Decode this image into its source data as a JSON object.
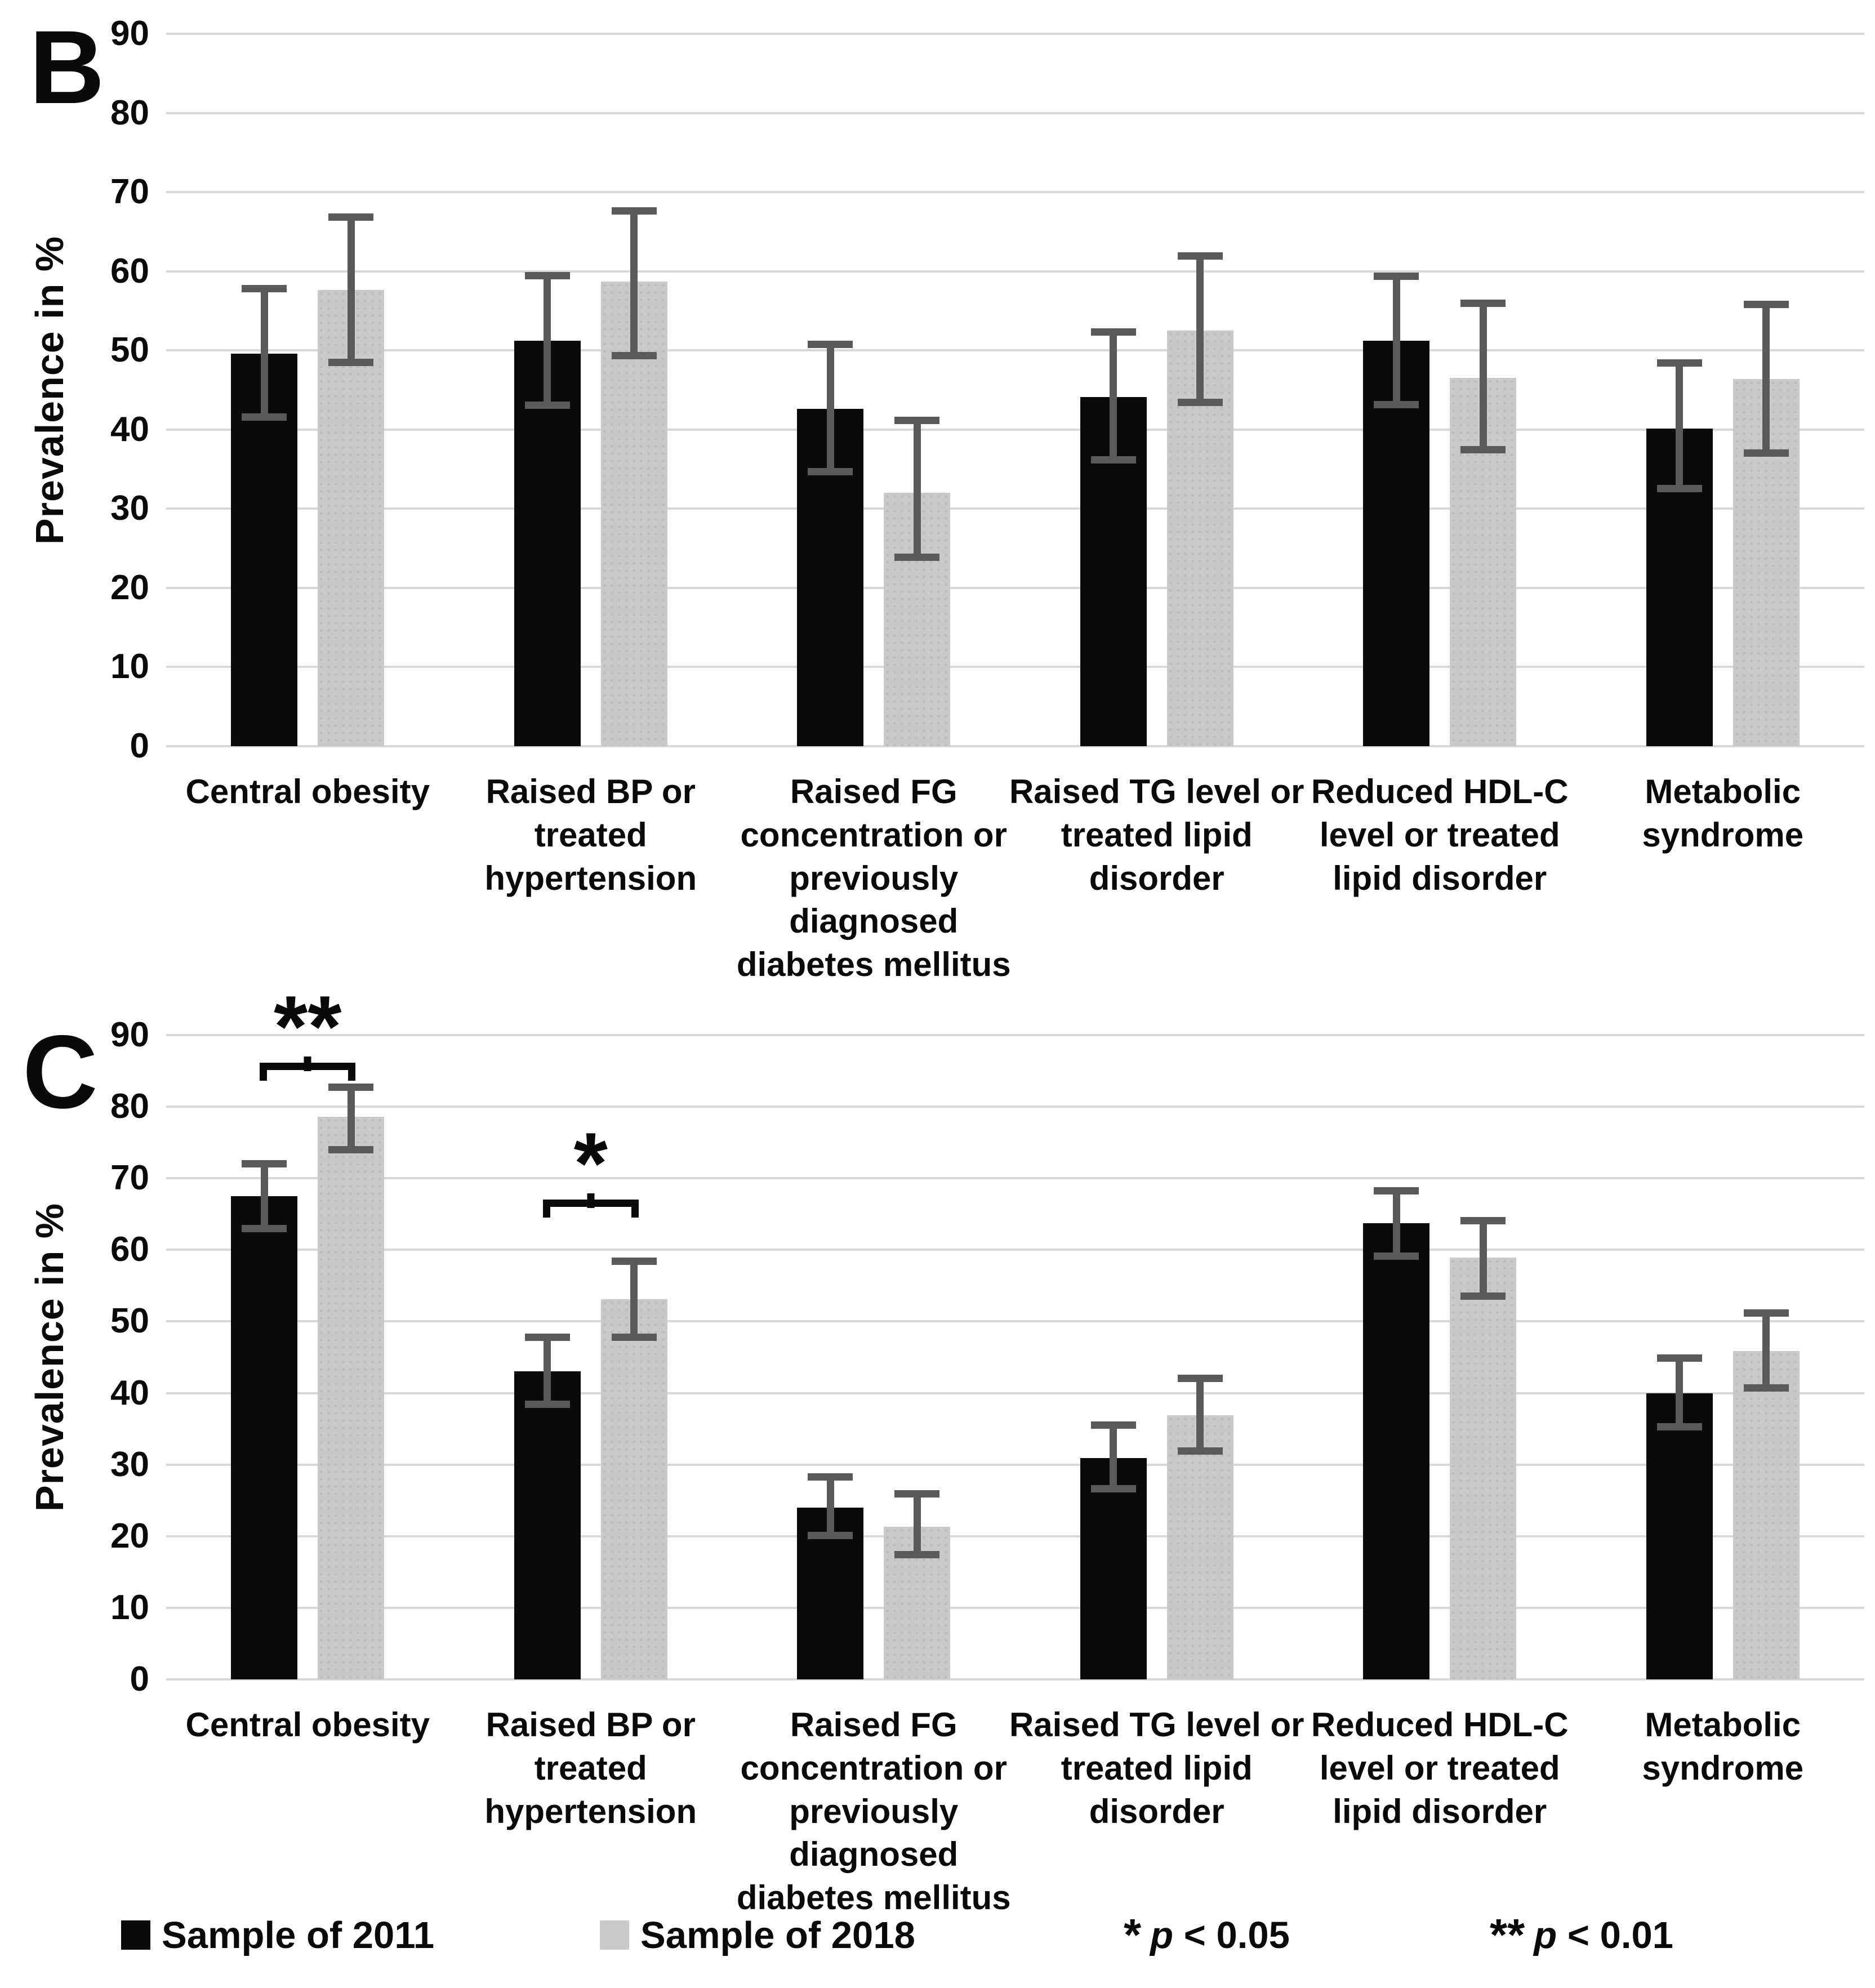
{
  "panels": [
    {
      "letter": "B",
      "y_axis_title": "Prevalence in %"
    },
    {
      "letter": "C",
      "y_axis_title": "Prevalence in %"
    }
  ],
  "legend": {
    "series": [
      {
        "label": "Sample of 2011",
        "color": "#0a0a0a"
      },
      {
        "label": "Sample of 2018",
        "color": "#c9c9c9"
      }
    ],
    "significance": [
      {
        "marker": "*",
        "p_symbol": "p",
        "comparison": "< 0.05"
      },
      {
        "marker": "**",
        "p_symbol": "p",
        "comparison": "< 0.01"
      }
    ]
  },
  "colors": {
    "bar_2011": "#0a0a0a",
    "bar_2018": "#c9c9c9",
    "error_bar": "#5a5a5a",
    "gridline": "#d8d8d8"
  },
  "chart_data": [
    {
      "type": "bar",
      "panel": "B",
      "ylabel": "Prevalence in %",
      "ylim": [
        0,
        90
      ],
      "ytick_step": 10,
      "grid": true,
      "legend_position": "bottom",
      "categories": [
        "Central obesity",
        "Raised BP or\ntreated\nhypertension",
        "Raised FG\nconcentration or\npreviously\ndiagnosed\ndiabetes mellitus",
        "Raised TG level or\ntreated lipid\ndisorder",
        "Reduced HDL-C\nlevel or treated\nlipid disorder",
        "Metabolic\nsyndrome"
      ],
      "series": [
        {
          "name": "Sample of 2011",
          "color": "#0a0a0a",
          "values": [
            49.6,
            51.2,
            42.6,
            44.1,
            51.2,
            40.1
          ],
          "ci_low": [
            41.1,
            42.6,
            34.2,
            35.7,
            42.7,
            32.1
          ],
          "ci_high": [
            58.3,
            59.9,
            51.2,
            52.8,
            59.8,
            48.9
          ]
        },
        {
          "name": "Sample of 2018",
          "color": "#c9c9c9",
          "values": [
            57.6,
            58.7,
            32.0,
            52.5,
            46.5,
            46.4
          ],
          "ci_low": [
            48.0,
            48.9,
            23.4,
            43.0,
            37.0,
            36.6
          ],
          "ci_high": [
            67.3,
            68.1,
            41.6,
            62.4,
            56.4,
            56.3
          ]
        }
      ],
      "significance": []
    },
    {
      "type": "bar",
      "panel": "C",
      "ylabel": "Prevalence in %",
      "ylim": [
        0,
        90
      ],
      "ytick_step": 10,
      "grid": true,
      "legend_position": "bottom",
      "categories": [
        "Central obesity",
        "Raised BP or\ntreated\nhypertension",
        "Raised FG\nconcentration or\npreviously\ndiagnosed\ndiabetes mellitus",
        "Raised TG level or\ntreated lipid\ndisorder",
        "Reduced HDL-C\nlevel or treated\nlipid disorder",
        "Metabolic\nsyndrome"
      ],
      "series": [
        {
          "name": "Sample of 2011",
          "color": "#0a0a0a",
          "values": [
            67.5,
            43.0,
            24.0,
            30.9,
            63.7,
            40.0
          ],
          "ci_low": [
            62.5,
            37.9,
            19.6,
            26.1,
            58.6,
            34.8
          ],
          "ci_high": [
            72.5,
            48.3,
            28.8,
            36.0,
            68.8,
            45.4
          ]
        },
        {
          "name": "Sample of 2018",
          "color": "#c9c9c9",
          "values": [
            78.6,
            53.1,
            21.3,
            36.9,
            58.9,
            45.9
          ],
          "ci_low": [
            73.5,
            47.3,
            16.9,
            31.4,
            53.0,
            40.2
          ],
          "ci_high": [
            83.2,
            58.9,
            26.4,
            42.6,
            64.6,
            51.7
          ]
        }
      ],
      "significance": [
        {
          "category_index": 0,
          "label": "**",
          "bracket_y": 83.6
        },
        {
          "category_index": 1,
          "label": "*",
          "bracket_y": 64.5
        }
      ]
    }
  ]
}
